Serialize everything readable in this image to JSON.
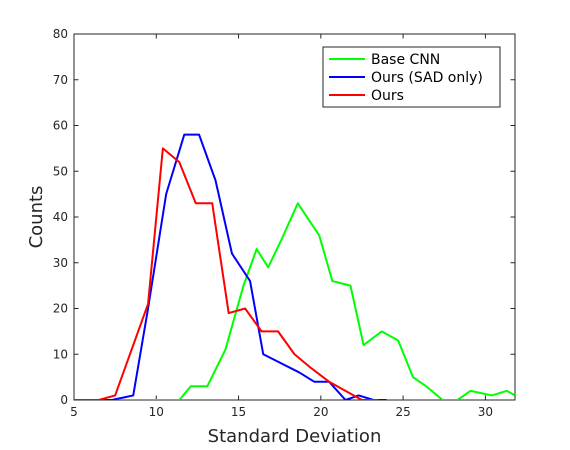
{
  "chart_data": {
    "type": "line",
    "xlabel": "Standard Deviation",
    "ylabel": "Counts",
    "xlim": [
      5,
      31.8
    ],
    "ylim": [
      0,
      80
    ],
    "xticks": [
      5,
      10,
      15,
      20,
      25,
      30
    ],
    "yticks": [
      0,
      10,
      20,
      30,
      40,
      50,
      60,
      70,
      80
    ],
    "grid": false,
    "legend_position": "top-right",
    "series": [
      {
        "name": "Base CNN",
        "color": "#00ff00",
        "x": [
          5,
          11.4,
          12.1,
          13.1,
          14.2,
          15.3,
          16.1,
          16.8,
          17.6,
          18.6,
          19.9,
          20.7,
          21.8,
          22.6,
          23.7,
          24.7,
          25.6,
          26.4,
          27.4,
          28.3,
          29.1,
          30.4,
          31.3,
          31.8
        ],
        "values": [
          0,
          0,
          3,
          3,
          11,
          25,
          33,
          29,
          35,
          43,
          36,
          26,
          25,
          12,
          15,
          13,
          5,
          3,
          0,
          0,
          2,
          1,
          2,
          1
        ]
      },
      {
        "name": "Ours (SAD only)",
        "color": "#0000ff",
        "x": [
          5,
          7.3,
          8.6,
          9.5,
          10.6,
          11.7,
          12.6,
          13.6,
          14.6,
          15.7,
          16.5,
          17.6,
          18.7,
          19.6,
          20.5,
          21.5,
          22.3,
          23.2,
          24.0
        ],
        "values": [
          0,
          0,
          1,
          20,
          45,
          58,
          58,
          48,
          32,
          26,
          10,
          8,
          6,
          4,
          4,
          0,
          1,
          0,
          0
        ]
      },
      {
        "name": "Ours",
        "color": "#ff0000",
        "x": [
          5,
          6.5,
          7.5,
          8.6,
          9.5,
          10.4,
          11.4,
          12.4,
          13.4,
          14.4,
          15.4,
          16.4,
          17.4,
          18.4,
          19.4,
          20.5,
          21.5,
          22.5,
          23.5
        ],
        "values": [
          0,
          0,
          1,
          12,
          21,
          55,
          52,
          43,
          43,
          19,
          20,
          15,
          15,
          10,
          7,
          4,
          2,
          0,
          0
        ]
      }
    ]
  }
}
